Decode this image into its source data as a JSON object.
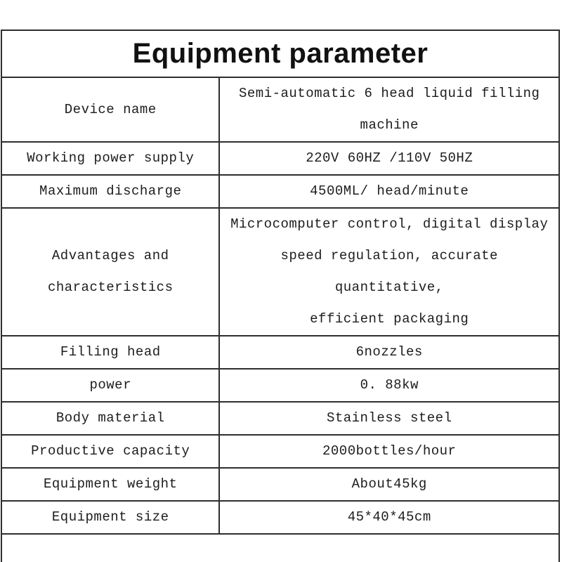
{
  "title": "Equipment parameter",
  "table": {
    "rows": [
      {
        "label": "Device name",
        "value": "Semi-automatic 6 head liquid filling\nmachine"
      },
      {
        "label": "Working power supply",
        "value": "220V 60HZ /110V 50HZ"
      },
      {
        "label": "Maximum discharge",
        "value": "4500ML/ head/minute"
      },
      {
        "label": "Advantages and\ncharacteristics",
        "value": "Microcomputer control, digital display\nspeed regulation, accurate quantitative,\nefficient packaging"
      },
      {
        "label": "Filling head",
        "value": "6nozzles"
      },
      {
        "label": "power",
        "value": "0. 88kw"
      },
      {
        "label": "Body material",
        "value": "Stainless steel"
      },
      {
        "label": "Productive capacity",
        "value": "2000bottles/hour"
      },
      {
        "label": "Equipment weight",
        "value": "About45kg"
      },
      {
        "label": "Equipment size",
        "value": "45*40*45cm"
      }
    ]
  },
  "colors": {
    "border": "#2e2e2e",
    "text": "#1c1c1c",
    "background": "#ffffff"
  }
}
